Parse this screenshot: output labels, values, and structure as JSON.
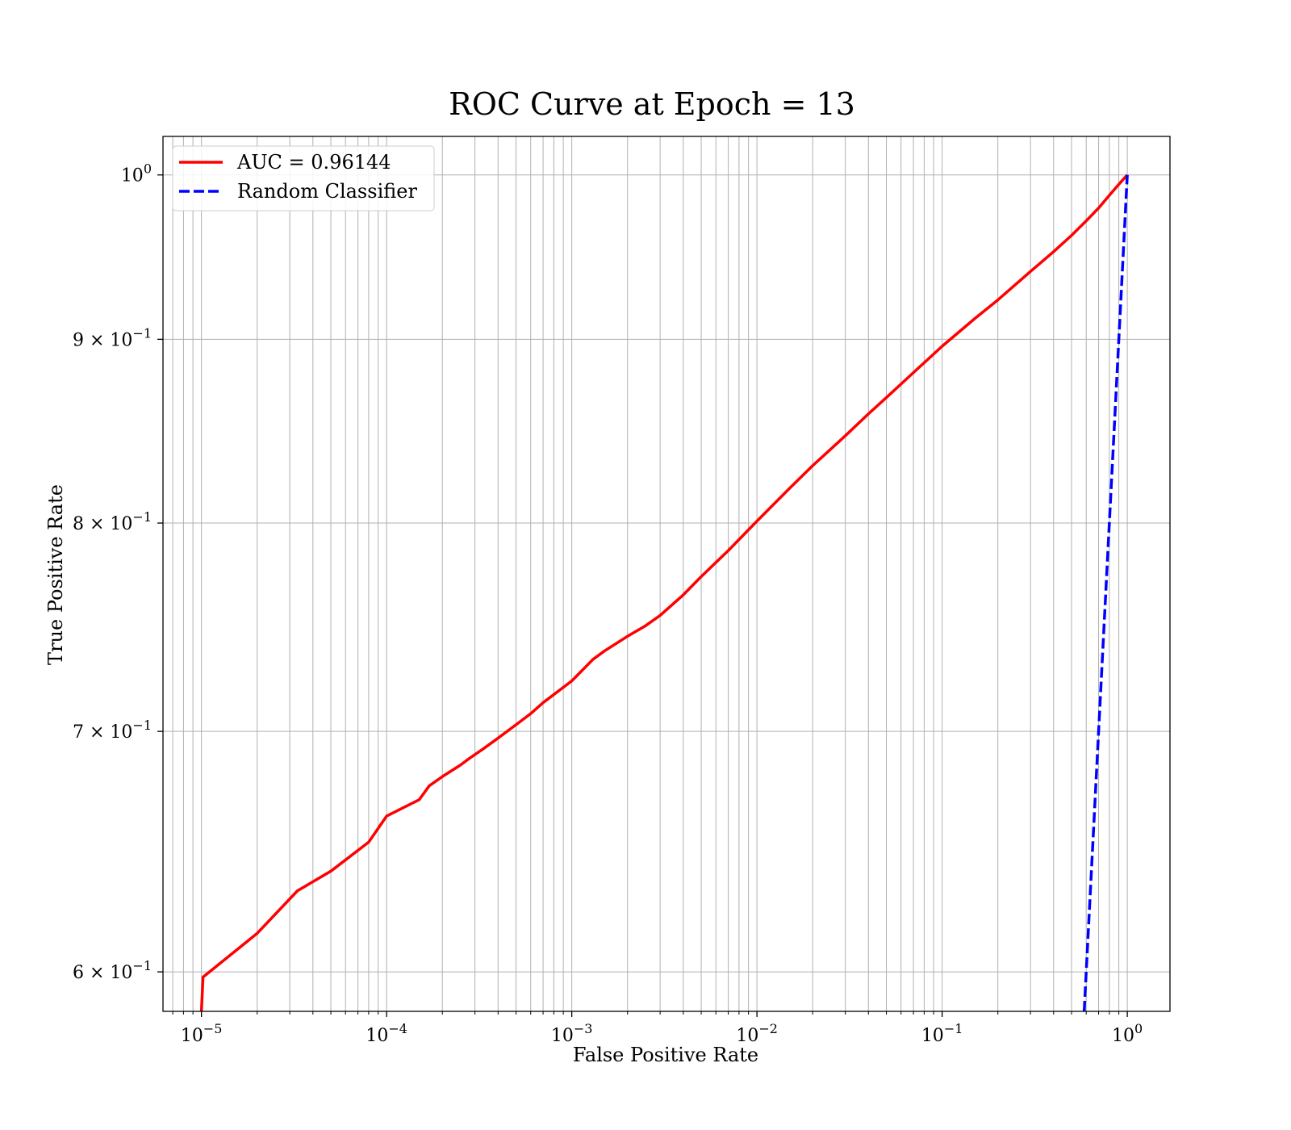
{
  "chart_data": {
    "type": "line",
    "title": "ROC Curve at Epoch = 13",
    "xlabel": "False Positive Rate",
    "ylabel": "True Positive Rate",
    "xscale": "log",
    "yscale": "log",
    "xlim": [
      6.2e-06,
      1.7
    ],
    "ylim": [
      0.585,
      1.025
    ],
    "grid": "both",
    "legend_position": "upper-left",
    "x_ticks": [
      {
        "value": 1e-05,
        "base": "10",
        "exp": "−5"
      },
      {
        "value": 0.0001,
        "base": "10",
        "exp": "−4"
      },
      {
        "value": 0.001,
        "base": "10",
        "exp": "−3"
      },
      {
        "value": 0.01,
        "base": "10",
        "exp": "−2"
      },
      {
        "value": 0.1,
        "base": "10",
        "exp": "−1"
      },
      {
        "value": 1,
        "base": "10",
        "exp": "0"
      }
    ],
    "y_ticks": [
      {
        "value": 1.0,
        "base": "10",
        "exp": "0"
      },
      {
        "value": 0.9,
        "base": "9 × 10",
        "exp": "−1"
      },
      {
        "value": 0.8,
        "base": "8 × 10",
        "exp": "−1"
      },
      {
        "value": 0.7,
        "base": "7 × 10",
        "exp": "−1"
      },
      {
        "value": 0.6,
        "base": "6 × 10",
        "exp": "−1"
      }
    ],
    "series": [
      {
        "name": "AUC = 0.96144",
        "color": "#ff0000",
        "style": "solid",
        "x": [
          1e-05,
          1.02e-05,
          2e-05,
          3.3e-05,
          5e-05,
          8e-05,
          0.0001,
          0.00015,
          0.00017,
          0.0002,
          0.00025,
          0.00028,
          0.00033,
          0.0004,
          0.0005,
          0.0006,
          0.0007,
          0.001,
          0.0013,
          0.0015,
          0.002,
          0.0025,
          0.003,
          0.004,
          0.005,
          0.007,
          0.01,
          0.015,
          0.02,
          0.03,
          0.04,
          0.05,
          0.07,
          0.1,
          0.15,
          0.2,
          0.3,
          0.4,
          0.5,
          0.6,
          0.7,
          0.8,
          0.9,
          1.0
        ],
        "y": [
          0.585,
          0.598,
          0.615,
          0.632,
          0.64,
          0.652,
          0.663,
          0.67,
          0.676,
          0.68,
          0.685,
          0.688,
          0.692,
          0.697,
          0.703,
          0.708,
          0.713,
          0.723,
          0.733,
          0.737,
          0.744,
          0.749,
          0.754,
          0.764,
          0.773,
          0.786,
          0.801,
          0.818,
          0.83,
          0.846,
          0.858,
          0.867,
          0.881,
          0.896,
          0.912,
          0.923,
          0.94,
          0.952,
          0.962,
          0.971,
          0.979,
          0.987,
          0.994,
          1.0
        ]
      },
      {
        "name": "Random Classifier",
        "color": "#0000ff",
        "style": "dashed",
        "x": [
          0.585,
          0.6,
          0.7,
          0.8,
          0.9,
          1.0
        ],
        "y": [
          0.585,
          0.6,
          0.7,
          0.8,
          0.9,
          1.0
        ]
      }
    ]
  }
}
